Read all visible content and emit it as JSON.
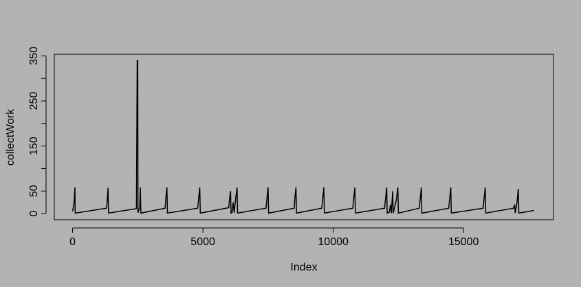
{
  "chart_data": {
    "type": "line",
    "x_label": "Index",
    "y_label": "collectWork",
    "x": [
      0,
      60,
      90,
      100,
      1300,
      1330,
      1360,
      1380,
      2450,
      2480,
      2500,
      2510,
      2580,
      2600,
      2620,
      3550,
      3580,
      3620,
      3640,
      4800,
      4840,
      4880,
      4900,
      5990,
      6020,
      6060,
      6080,
      6120,
      6160,
      6200,
      6250,
      6310,
      6330,
      7420,
      7460,
      7500,
      7520,
      8500,
      8530,
      8570,
      8590,
      9560,
      9600,
      9640,
      9660,
      10750,
      10790,
      10830,
      10850,
      11970,
      12010,
      12050,
      12070,
      12150,
      12200,
      12230,
      12280,
      12300,
      12420,
      12480,
      12500,
      13300,
      13340,
      13380,
      13400,
      14430,
      14470,
      14510,
      14530,
      15750,
      15790,
      15830,
      15850,
      16920,
      16960,
      16980,
      17050,
      17100,
      17120,
      17700
    ],
    "series": [
      {
        "name": "collectWork",
        "color": "#000000",
        "values": [
          5,
          25,
          58,
          1,
          12,
          30,
          57,
          1,
          11,
          340,
          340,
          2,
          15,
          58,
          1,
          12,
          35,
          58,
          1,
          12,
          35,
          58,
          1,
          13,
          30,
          50,
          1,
          3,
          25,
          2,
          30,
          58,
          1,
          12,
          35,
          58,
          1,
          12,
          35,
          58,
          1,
          12,
          35,
          58,
          1,
          12,
          35,
          58,
          1,
          12,
          35,
          58,
          1,
          3,
          20,
          1,
          50,
          1,
          30,
          58,
          1,
          12,
          35,
          58,
          1,
          12,
          35,
          58,
          1,
          12,
          35,
          58,
          1,
          12,
          20,
          1,
          25,
          55,
          1,
          7
        ]
      }
    ],
    "xlim": [
      -700,
      18450
    ],
    "ylim": [
      -13.6,
      353.6
    ],
    "xticks": [
      0,
      5000,
      10000,
      15000
    ],
    "yticks": [
      0,
      50,
      {
        "value": 100,
        "label": null
      },
      150,
      {
        "value": 200,
        "label": null
      },
      250,
      {
        "value": 300,
        "label": null
      },
      350
    ]
  }
}
